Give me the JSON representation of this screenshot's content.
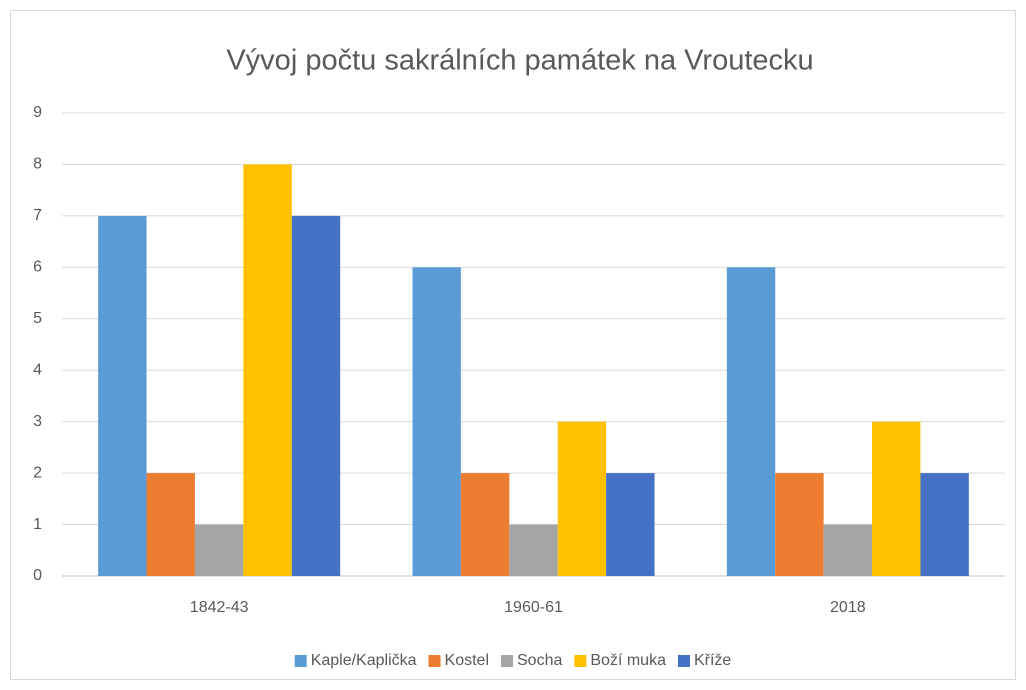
{
  "chart_data": {
    "type": "bar",
    "title": "Vývoj počtu sakrálních památek na Vroutecku",
    "categories": [
      "1842-43",
      "1960-61",
      "2018"
    ],
    "series": [
      {
        "name": "Kaple/Kaplička",
        "color": "#5b9bd5",
        "values": [
          7,
          6,
          6
        ]
      },
      {
        "name": "Kostel",
        "color": "#ed7d31",
        "values": [
          2,
          2,
          2
        ]
      },
      {
        "name": "Socha",
        "color": "#a5a5a5",
        "values": [
          1,
          1,
          1
        ]
      },
      {
        "name": "Boží muka",
        "color": "#ffc000",
        "values": [
          8,
          3,
          3
        ]
      },
      {
        "name": "Kříže",
        "color": "#4472c4",
        "values": [
          7,
          2,
          2
        ]
      }
    ],
    "ylim": [
      0,
      9
    ],
    "yticks": [
      0,
      1,
      2,
      3,
      4,
      5,
      6,
      7,
      8,
      9
    ],
    "grid": true,
    "legend": "bottom"
  }
}
